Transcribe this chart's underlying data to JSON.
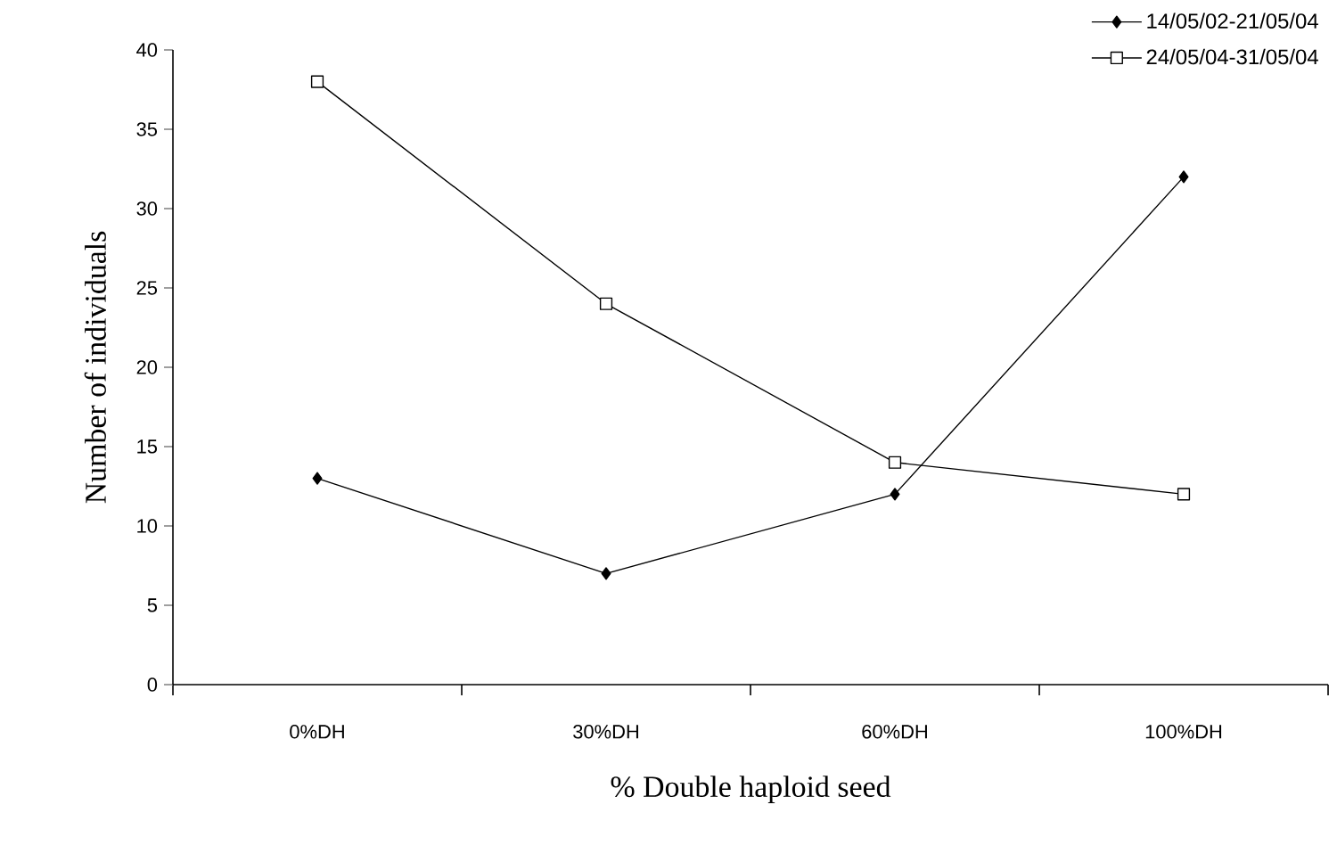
{
  "chart_data": {
    "type": "line",
    "xlabel": "% Double haploid seed",
    "ylabel": "Number of individuals",
    "categories": [
      "0%DH",
      "30%DH",
      "60%DH",
      "100%DH"
    ],
    "series": [
      {
        "name": "14/05/02-21/05/04",
        "color": "#000000",
        "marker": "diamond",
        "values": [
          13,
          7,
          12,
          32
        ]
      },
      {
        "name": "24/05/04-31/05/04",
        "color": "#000000",
        "marker": "square",
        "values": [
          38,
          24,
          14,
          12
        ]
      }
    ],
    "ylim": [
      0,
      40
    ],
    "yticks": [
      0,
      5,
      10,
      15,
      20,
      25,
      30,
      35,
      40
    ],
    "grid": false,
    "legend": "top right",
    "line_style": "solid"
  }
}
